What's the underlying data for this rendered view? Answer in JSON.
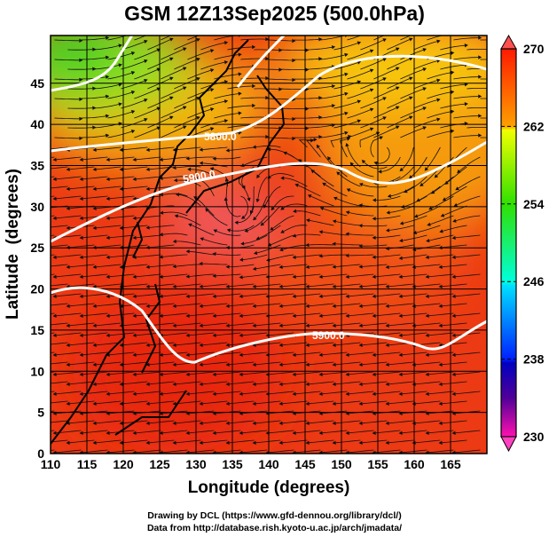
{
  "chart_data": {
    "type": "heatmap",
    "title": "GSM 12Z13Sep2025 (500.0hPa)",
    "xlabel": "Longitude (degrees)",
    "ylabel": "Latitude  (degrees)",
    "xlim": [
      110,
      170
    ],
    "ylim": [
      0,
      50.8
    ],
    "xticks": [
      "110",
      "115",
      "120",
      "125",
      "130",
      "135",
      "140",
      "145",
      "150",
      "155",
      "160",
      "165"
    ],
    "yticks": [
      "0",
      "5",
      "10",
      "15",
      "20",
      "25",
      "30",
      "35",
      "40",
      "45"
    ],
    "grid": true,
    "field": "temperature (K), shaded",
    "overlays": [
      "wind streamlines",
      "geopotential height contours (white)"
    ],
    "contour_labels": [
      "5800.0",
      "5900.0",
      "5900.0"
    ],
    "colorbar": {
      "ticks": [
        "270",
        "262",
        "254",
        "246",
        "238",
        "230"
      ],
      "range": [
        230,
        270
      ],
      "colors": [
        "#ff00b4",
        "#0000c8",
        "#0064ff",
        "#00ffff",
        "#00ff40",
        "#ffff00",
        "#ff8000",
        "#ff0000"
      ]
    }
  },
  "footer": {
    "line1": "Drawing by DCL (https://www.gfd-dennou.org/library/dcl/)",
    "line2": "Data from http://database.rish.kyoto-u.ac.jp/arch/jmadata/"
  }
}
